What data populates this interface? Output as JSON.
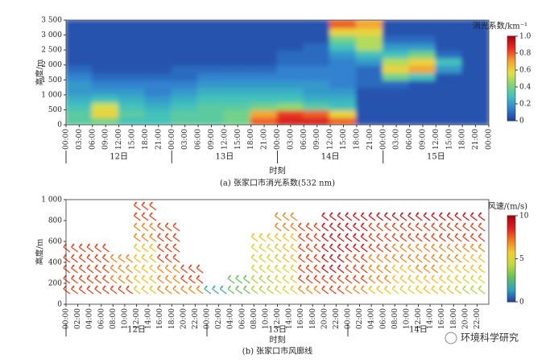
{
  "chart_data": [
    {
      "type": "heatmap",
      "title": "(a) 张家口市消光系数(532 nm)",
      "xlabel": "时刻",
      "ylabel": "高度/m",
      "colorbar_title": "消光系数/km⁻¹",
      "categories": [
        "00:00",
        "03:00",
        "06:00",
        "09:00",
        "12:00",
        "15:00",
        "18:00",
        "21:00",
        "00:00",
        "03:00",
        "06:00",
        "09:00",
        "12:00",
        "15:00",
        "18:00",
        "21:00",
        "00:00",
        "03:00",
        "06:00",
        "09:00",
        "12:00",
        "15:00",
        "18:00",
        "21:00",
        "00:00",
        "03:00",
        "06:00",
        "09:00",
        "12:00",
        "15:00",
        "18:00",
        "21:00",
        "00:00"
      ],
      "dates": [
        "12日",
        "13日",
        "14日",
        "15日"
      ],
      "ylim": [
        0,
        3500
      ],
      "yticks": [
        0,
        500,
        {
          "value": 1000,
          "label": "1 000"
        },
        {
          "value": 1500,
          "label": "1 500"
        },
        {
          "value": 2000,
          "label": "2 000"
        },
        {
          "value": 2500,
          "label": "2 500"
        },
        {
          "value": 3000,
          "label": "3 000"
        },
        {
          "value": 3500,
          "label": "3 500"
        }
      ],
      "ybins": [
        0,
        250,
        500,
        750,
        1000,
        1250,
        1500,
        1750,
        2000,
        2250,
        2500,
        2750,
        3000,
        3250,
        3500
      ],
      "clim": [
        0,
        1
      ],
      "cticks": [
        0,
        0.2,
        0.4,
        0.6,
        0.8,
        {
          "value": 1,
          "label": "1.0"
        }
      ],
      "colormap": [
        "#1f3c9c",
        "#2f7fd0",
        "#3fc0c0",
        "#7ed67a",
        "#e6e040",
        "#f5a030",
        "#e83020",
        "#b00010"
      ],
      "values": [
        [
          0.35,
          0.4,
          0.3,
          0.3,
          0.35,
          0.35,
          0.4,
          0.8,
          0.9,
          0.9,
          0.8,
          0.05,
          0.05,
          0.05,
          0.05,
          0.05
        ],
        [
          0.35,
          0.6,
          0.35,
          0.3,
          0.35,
          0.35,
          0.4,
          0.7,
          0.85,
          0.8,
          0.6,
          0.05,
          0.05,
          0.05,
          0.05,
          0.05
        ],
        [
          0.3,
          0.55,
          0.3,
          0.25,
          0.3,
          0.35,
          0.35,
          0.4,
          0.45,
          0.35,
          0.3,
          0.05,
          0.05,
          0.05,
          0.05,
          0.05
        ],
        [
          0.25,
          0.3,
          0.25,
          0.2,
          0.25,
          0.3,
          0.3,
          0.3,
          0.3,
          0.25,
          0.25,
          0.05,
          0.05,
          0.05,
          0.05,
          0.05
        ],
        [
          0.2,
          0.2,
          0.2,
          0.15,
          0.2,
          0.25,
          0.25,
          0.25,
          0.25,
          0.2,
          0.2,
          0.05,
          0.05,
          0.05,
          0.05,
          0.05
        ],
        [
          0.2,
          0.15,
          0.15,
          0.15,
          0.15,
          0.2,
          0.2,
          0.2,
          0.2,
          0.2,
          0.15,
          0.1,
          0.1,
          0.05,
          0.05,
          0.05
        ],
        [
          0.15,
          0.1,
          0.1,
          0.1,
          0.1,
          0.15,
          0.15,
          0.15,
          0.15,
          0.15,
          0.15,
          0.1,
          0.4,
          0.3,
          0.05,
          0.05
        ],
        [
          0.1,
          0.05,
          0.05,
          0.05,
          0.1,
          0.1,
          0.1,
          0.1,
          0.15,
          0.15,
          0.15,
          0.1,
          0.6,
          0.7,
          0.2,
          0.05
        ],
        [
          0.05,
          0.05,
          0.05,
          0.05,
          0.05,
          0.05,
          0.05,
          0.05,
          0.1,
          0.1,
          0.15,
          0.2,
          0.5,
          0.6,
          0.3,
          0.05
        ],
        [
          0.05,
          0.05,
          0.05,
          0.05,
          0.05,
          0.05,
          0.05,
          0.05,
          0.1,
          0.1,
          0.2,
          0.3,
          0.3,
          0.4,
          0.1,
          0.05
        ],
        [
          0.05,
          0.05,
          0.05,
          0.05,
          0.05,
          0.05,
          0.05,
          0.05,
          0.05,
          0.1,
          0.3,
          0.5,
          0.2,
          0.2,
          0.05,
          0.05
        ],
        [
          0.05,
          0.05,
          0.05,
          0.05,
          0.05,
          0.05,
          0.05,
          0.05,
          0.05,
          0.05,
          0.4,
          0.5,
          0.1,
          0.1,
          0.05,
          0.05
        ],
        [
          0.05,
          0.05,
          0.05,
          0.05,
          0.05,
          0.05,
          0.05,
          0.05,
          0.05,
          0.05,
          0.6,
          0.6,
          0.05,
          0.05,
          0.05,
          0.05
        ],
        [
          0.05,
          0.05,
          0.05,
          0.05,
          0.05,
          0.05,
          0.05,
          0.05,
          0.05,
          0.05,
          0.8,
          0.7,
          0.05,
          0.05,
          0.05,
          0.05
        ]
      ]
    },
    {
      "type": "barbs",
      "title": "(b) 张家口市风廓线",
      "xlabel": "时刻",
      "ylabel": "高度/m",
      "colorbar_title": "风速/(m/s)",
      "categories": [
        "00:00",
        "02:00",
        "04:00",
        "06:00",
        "08:00",
        "10:00",
        "12:00",
        "14:00",
        "16:00",
        "18:00",
        "20:00",
        "22:00",
        "00:00",
        "02:00",
        "04:00",
        "06:00",
        "08:00",
        "10:00",
        "12:00",
        "14:00",
        "16:00",
        "18:00",
        "20:00",
        "22:00",
        "00:00",
        "02:00",
        "04:00",
        "06:00",
        "08:00",
        "10:00",
        "12:00",
        "14:00",
        "16:00",
        "18:00",
        "20:00",
        "22:00"
      ],
      "dates": [
        "12日",
        "13日",
        "14日"
      ],
      "ylim": [
        0,
        1000
      ],
      "yticks": [
        0,
        200,
        400,
        600,
        800,
        {
          "value": 1000,
          "label": "1 000"
        }
      ],
      "heights": [
        100,
        200,
        300,
        400,
        500,
        600,
        700,
        800,
        900
      ],
      "clim": [
        0,
        10
      ],
      "cticks": [
        0,
        5,
        10
      ],
      "colormap": [
        "#2040a0",
        "#30a0c0",
        "#60c060",
        "#c0d840",
        "#f0d030",
        "#f08020",
        "#e02020",
        "#b00010"
      ],
      "values": [
        [
          8,
          8,
          8,
          6,
          7,
          7,
          2,
          3,
          4,
          5,
          7,
          8,
          7,
          6,
          5,
          6,
          6,
          4
        ],
        [
          8,
          8,
          7,
          6,
          7,
          8,
          null,
          3,
          4,
          5,
          8,
          8,
          8,
          7,
          6,
          6,
          6,
          5
        ],
        [
          8,
          8,
          7,
          6,
          7,
          8,
          null,
          null,
          5,
          5,
          8,
          9,
          8,
          7,
          6,
          7,
          6,
          6
        ],
        [
          8,
          8,
          7,
          6,
          8,
          null,
          null,
          null,
          5,
          6,
          8,
          9,
          8,
          7,
          7,
          7,
          7,
          6
        ],
        [
          8,
          8,
          null,
          6,
          8,
          null,
          null,
          null,
          5,
          6,
          8,
          9,
          9,
          8,
          7,
          7,
          7,
          7
        ],
        [
          null,
          null,
          null,
          7,
          8,
          null,
          null,
          null,
          6,
          6,
          8,
          9,
          9,
          8,
          8,
          8,
          8,
          8
        ],
        [
          null,
          null,
          null,
          7,
          8,
          null,
          null,
          null,
          null,
          7,
          8,
          9,
          9,
          8,
          8,
          8,
          8,
          8
        ],
        [
          null,
          null,
          null,
          8,
          null,
          null,
          null,
          null,
          null,
          7,
          null,
          9,
          9,
          9,
          9,
          9,
          9,
          9
        ],
        [
          null,
          null,
          null,
          8,
          null,
          null,
          null,
          null,
          null,
          null,
          null,
          null,
          null,
          null,
          null,
          null,
          null,
          null
        ]
      ]
    }
  ],
  "watermark": "环境科学研究"
}
